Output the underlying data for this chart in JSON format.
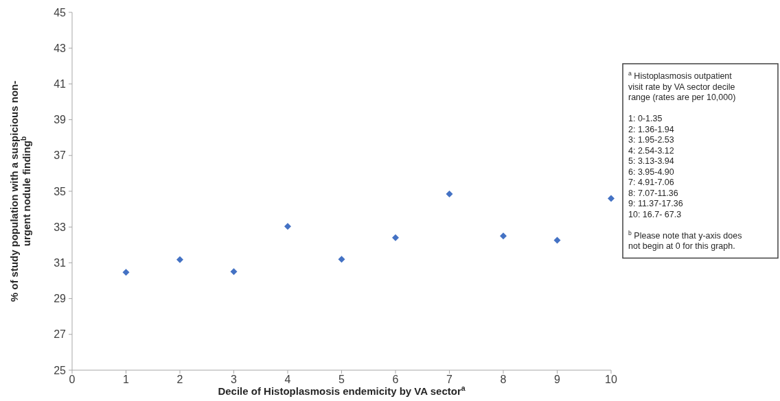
{
  "chart_data": {
    "type": "scatter",
    "xlabel": "Decile of Histoplasmosis endemicity by VA sector$^{a}$",
    "ylabel": "% of study population with a suspicious non-urgent nodule finding$^{b}$",
    "x": [
      1,
      2,
      3,
      4,
      5,
      6,
      7,
      8,
      9,
      10
    ],
    "values": [
      30.47,
      31.18,
      30.51,
      33.04,
      31.2,
      32.4,
      34.85,
      32.5,
      32.26,
      34.6
    ],
    "color": "#4472c4",
    "marker": "diamond",
    "xlim": [
      0,
      10
    ],
    "xticks": [
      0,
      1,
      2,
      3,
      4,
      5,
      6,
      7,
      8,
      9,
      10
    ],
    "ylim": [
      25,
      45
    ],
    "yticks": [
      25,
      27,
      29,
      31,
      33,
      35,
      37,
      39,
      41,
      43,
      45
    ],
    "grid": false,
    "annotations": [
      "$^{a}$ Histoplasmosis outpatient visit rate by VA sector decile range (rates are per 10,000)",
      "1: 0-1.35",
      "2:  1.36-1.94",
      "3:  1.95-2.53",
      "4:  2.54-3.12",
      "5:  3.13-3.94",
      "6:  3.95-4.90",
      "7:  4.91-7.06",
      "8: 7.07-11.36",
      "9:  11.37-17.36",
      "10: 16.7- 67.3",
      "$^{b}$ Please note that y-axis does not begin at 0 for this graph."
    ]
  }
}
